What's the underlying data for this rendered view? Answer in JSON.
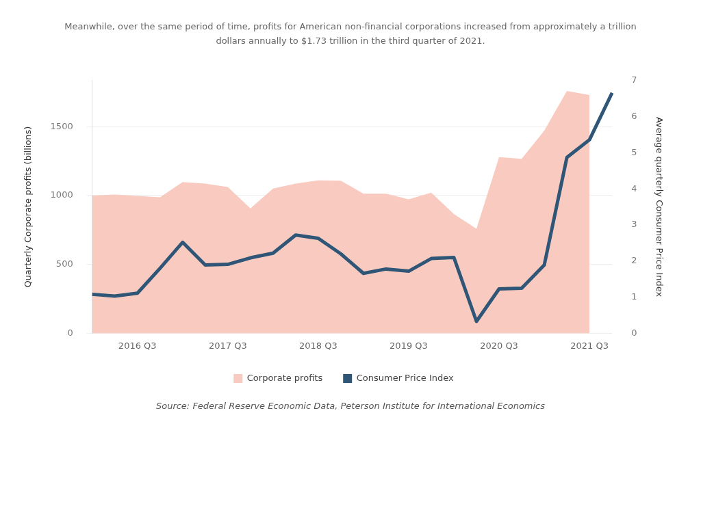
{
  "chart_data": {
    "type": "area",
    "title": "Meanwhile, over the same period of time, profits for American non-financial corporations increased from approximately a trillion dollars annually to $1.73 trillion in the third quarter of 2021.",
    "categories": [
      null,
      null,
      "2016 Q3",
      null,
      null,
      null,
      "2017 Q3",
      null,
      null,
      null,
      "2018 Q3",
      null,
      null,
      null,
      "2019 Q3",
      null,
      null,
      null,
      "2020 Q3",
      null,
      null,
      null,
      "2021 Q3",
      null
    ],
    "series": [
      {
        "name": "Corporate profits",
        "type": "area",
        "color": "#f9cbc0",
        "values": [
          1000,
          1007,
          997,
          988,
          1098,
          1087,
          1062,
          907,
          1051,
          1087,
          1111,
          1108,
          1013,
          1013,
          972,
          1021,
          866,
          759,
          1279,
          1267,
          1472,
          1759,
          1730,
          null
        ]
      },
      {
        "name": "Consumer Price Index",
        "type": "line",
        "axis": "y2",
        "color": "#2f5577",
        "values": [
          1.08,
          1.03,
          1.11,
          1.8,
          2.52,
          1.89,
          1.91,
          2.09,
          2.22,
          2.72,
          2.63,
          2.2,
          1.66,
          1.78,
          1.72,
          2.07,
          2.1,
          0.33,
          1.23,
          1.25,
          1.89,
          4.87,
          5.36,
          6.66
        ]
      }
    ],
    "ylabel": "Quarterly Corporate profits (billions)",
    "y2label": "Average quarterly Consumer Price Index",
    "ylim": [
      0,
      1835
    ],
    "yticks": [
      0,
      500,
      1000,
      1500
    ],
    "y2lim": [
      0,
      7
    ],
    "y2ticks": [
      0,
      1,
      2,
      3,
      4,
      5,
      6,
      7
    ],
    "grid": "y",
    "legend": "bottom",
    "marker": "none",
    "annotations": [
      "Source: Federal Reserve Economic Data, Peterson Institute for International Economics"
    ]
  }
}
